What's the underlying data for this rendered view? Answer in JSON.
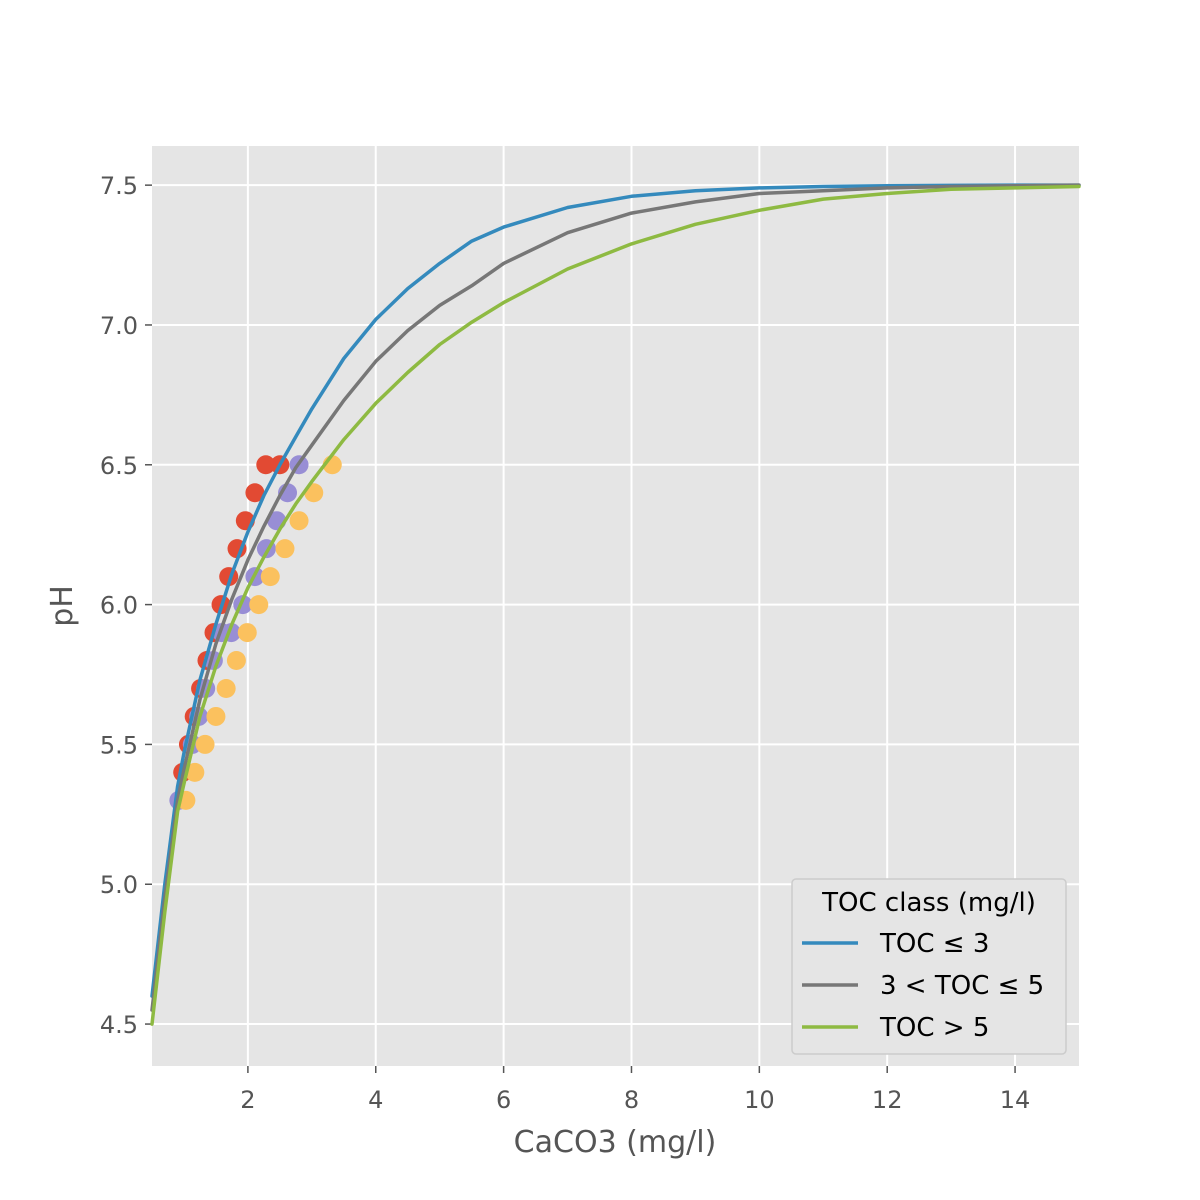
{
  "chart_data": {
    "type": "line",
    "title": "",
    "xlabel": "CaCO3 (mg/l)",
    "ylabel": "pH",
    "xlim": [
      0.5,
      15
    ],
    "ylim": [
      4.35,
      7.64
    ],
    "x_ticks": [
      2,
      4,
      6,
      8,
      10,
      12,
      14
    ],
    "y_ticks": [
      4.5,
      5.0,
      5.5,
      6.0,
      6.5,
      7.0,
      7.5
    ],
    "x_tick_labels": [
      "2",
      "4",
      "6",
      "8",
      "10",
      "12",
      "14"
    ],
    "y_tick_labels": [
      "4.5",
      "5.0",
      "5.5",
      "6.0",
      "6.5",
      "7.0",
      "7.5"
    ],
    "grid": true,
    "style": "ggplot",
    "legend": {
      "title": "TOC class (mg/l)",
      "placement": "lower-right"
    },
    "series": [
      {
        "name": "TOC ≤ 3",
        "kind": "line",
        "color": "#348ABD",
        "x": [
          0.5,
          0.7,
          0.9,
          1.0,
          1.25,
          1.5,
          1.75,
          2.0,
          2.25,
          2.5,
          2.75,
          3.0,
          3.5,
          4.0,
          4.5,
          5.0,
          5.5,
          6.0,
          7.0,
          8.0,
          9.0,
          10.0,
          11.0,
          12.0,
          13.0,
          14.0,
          15.0
        ],
        "y": [
          4.6,
          5.0,
          5.35,
          5.47,
          5.73,
          5.93,
          6.11,
          6.26,
          6.39,
          6.5,
          6.6,
          6.7,
          6.88,
          7.02,
          7.13,
          7.22,
          7.3,
          7.35,
          7.42,
          7.46,
          7.48,
          7.49,
          7.495,
          7.498,
          7.499,
          7.5,
          7.5
        ]
      },
      {
        "name": "3 < TOC ≤ 5",
        "kind": "line",
        "color": "#777777",
        "x": [
          0.5,
          0.7,
          0.9,
          1.0,
          1.25,
          1.5,
          1.75,
          2.0,
          2.25,
          2.5,
          2.75,
          3.0,
          3.5,
          4.0,
          4.5,
          5.0,
          5.5,
          6.0,
          7.0,
          8.0,
          9.0,
          10.0,
          11.0,
          12.0,
          13.0,
          14.0,
          15.0
        ],
        "y": [
          4.55,
          4.95,
          5.3,
          5.41,
          5.66,
          5.86,
          6.02,
          6.16,
          6.28,
          6.39,
          6.49,
          6.57,
          6.73,
          6.87,
          6.98,
          7.07,
          7.14,
          7.22,
          7.33,
          7.4,
          7.44,
          7.47,
          7.48,
          7.49,
          7.495,
          7.498,
          7.5
        ]
      },
      {
        "name": "TOC > 5",
        "kind": "line",
        "color": "#8EBA42",
        "x": [
          0.5,
          0.7,
          0.9,
          1.0,
          1.25,
          1.5,
          1.75,
          2.0,
          2.25,
          2.5,
          2.75,
          3.0,
          3.5,
          4.0,
          4.5,
          5.0,
          5.5,
          6.0,
          7.0,
          8.0,
          9.0,
          10.0,
          11.0,
          12.0,
          13.0,
          14.0,
          15.0
        ],
        "y": [
          4.5,
          4.9,
          5.26,
          5.36,
          5.6,
          5.78,
          5.93,
          6.06,
          6.17,
          6.27,
          6.36,
          6.44,
          6.59,
          6.72,
          6.83,
          6.93,
          7.01,
          7.08,
          7.2,
          7.29,
          7.36,
          7.41,
          7.45,
          7.47,
          7.485,
          7.49,
          7.495
        ]
      },
      {
        "kind": "scatter",
        "color": "#E24A33",
        "x": [
          0.98,
          1.07,
          1.16,
          1.26,
          1.36,
          1.47,
          1.58,
          1.7,
          1.83,
          1.96,
          2.11,
          2.28,
          2.5
        ],
        "y": [
          5.4,
          5.5,
          5.6,
          5.7,
          5.8,
          5.9,
          6.0,
          6.1,
          6.2,
          6.3,
          6.4,
          6.5,
          6.5
        ]
      },
      {
        "kind": "scatter",
        "color": "#988ED5",
        "x": [
          0.92,
          1.13,
          1.23,
          1.34,
          1.46,
          1.59,
          1.74,
          1.92,
          2.11,
          2.29,
          2.45,
          2.62,
          2.8
        ],
        "y": [
          5.3,
          5.5,
          5.6,
          5.7,
          5.8,
          5.9,
          5.9,
          6.0,
          6.1,
          6.2,
          6.3,
          6.4,
          6.5
        ]
      },
      {
        "kind": "scatter",
        "color": "#FBC15E",
        "x": [
          1.03,
          1.17,
          1.33,
          1.5,
          1.66,
          1.82,
          1.99,
          2.17,
          2.35,
          2.58,
          2.8,
          3.03,
          3.32
        ],
        "y": [
          5.3,
          5.4,
          5.5,
          5.6,
          5.7,
          5.8,
          5.9,
          6.0,
          6.1,
          6.2,
          6.3,
          6.4,
          6.5
        ]
      }
    ]
  }
}
